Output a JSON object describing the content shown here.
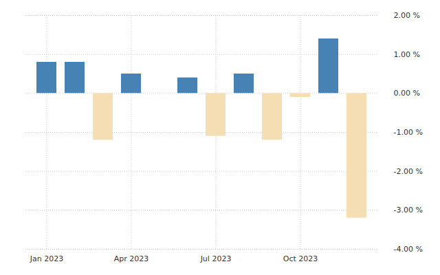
{
  "chart_data": {
    "type": "bar",
    "categories": [
      "Jan 2023",
      null,
      null,
      "Apr 2023",
      null,
      null,
      "Jul 2023",
      null,
      null,
      "Oct 2023",
      null,
      null
    ],
    "values": [
      0.8,
      0.8,
      -1.2,
      0.5,
      0,
      0.4,
      -1.1,
      0.5,
      -1.2,
      -0.1,
      1.4,
      -3.2
    ],
    "colors": [
      "#4682b4",
      "#4682b4",
      "#f5deb3",
      "#4682b4",
      "#4682b4",
      "#4682b4",
      "#f5deb3",
      "#4682b4",
      "#f5deb3",
      "#f5deb3",
      "#4682b4",
      "#f5deb3"
    ],
    "ylim": [
      -4,
      2
    ],
    "yticks": [
      {
        "value": 2,
        "label": "2.00 %"
      },
      {
        "value": 1,
        "label": "1.00 %"
      },
      {
        "value": 0,
        "label": "0.00 %"
      },
      {
        "value": -1,
        "label": "-1.00 %"
      },
      {
        "value": -2,
        "label": "-2.00 %"
      },
      {
        "value": -3,
        "label": "-3.00 %"
      },
      {
        "value": -4,
        "label": "-4.00 %"
      }
    ],
    "grid": true
  }
}
